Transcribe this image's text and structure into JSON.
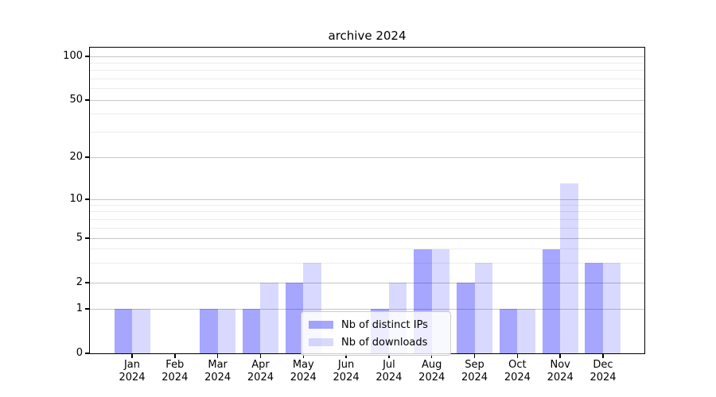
{
  "chart_data": {
    "type": "bar",
    "title": "archive 2024",
    "categories": [
      "Jan",
      "Feb",
      "Mar",
      "Apr",
      "May",
      "Jun",
      "Jul",
      "Aug",
      "Sep",
      "Oct",
      "Nov",
      "Dec"
    ],
    "category_sublabel": "2024",
    "series": [
      {
        "name": "Nb of distinct IPs",
        "color": "rgba(0,0,255,0.35)",
        "values": [
          1,
          0,
          1,
          1,
          2,
          0,
          1,
          4,
          2,
          1,
          4,
          3
        ]
      },
      {
        "name": "Nb of downloads",
        "color": "rgba(0,0,255,0.15)",
        "values": [
          1,
          0,
          1,
          2,
          3,
          0,
          2,
          4,
          3,
          1,
          13,
          3
        ]
      }
    ],
    "yscale": "symlog",
    "y_ticks": [
      0,
      1,
      2,
      5,
      10,
      20,
      50,
      100
    ],
    "y_minor_ticks": [
      3,
      4,
      6,
      7,
      8,
      9,
      30,
      40,
      60,
      70,
      80,
      90
    ],
    "ylim": [
      0,
      103
    ],
    "grid": true,
    "legend_position": "lower-center-inside",
    "colors": {
      "grid_major": "#c6c6c6",
      "grid_minor": "#ececec",
      "spine": "#000000",
      "text": "#000000"
    }
  }
}
